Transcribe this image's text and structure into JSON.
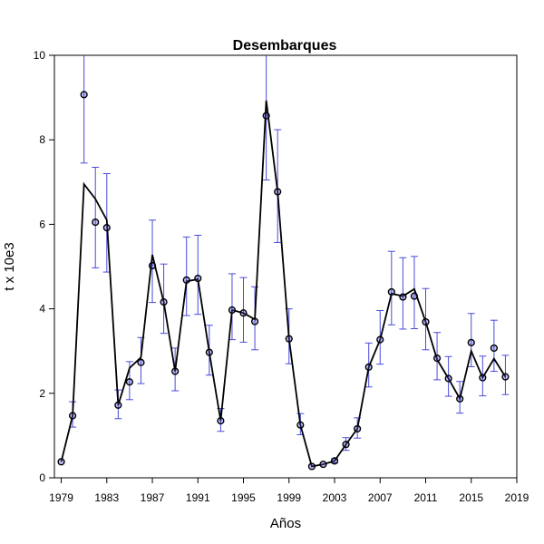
{
  "chart_data": {
    "type": "line",
    "title": "Desembarques",
    "xlabel": "Años",
    "ylabel": "t x 10e3",
    "xlim": [
      1978.4,
      2019
    ],
    "ylim": [
      0,
      10
    ],
    "x_ticks": [
      1979,
      1983,
      1987,
      1991,
      1995,
      1999,
      2003,
      2007,
      2011,
      2015,
      2019
    ],
    "y_ticks": [
      0,
      2,
      4,
      6,
      8,
      10
    ],
    "grid": false,
    "colors": {
      "error_bars": "#4a4adc",
      "line": "#000000",
      "points": "#000000"
    },
    "series": [
      {
        "kind": "observed-with-error",
        "x": [
          1979,
          1980,
          1981,
          1982,
          1983,
          1984,
          1985,
          1986,
          1987,
          1988,
          1989,
          1990,
          1991,
          1992,
          1993,
          1994,
          1995,
          1996,
          1997,
          1998,
          1999,
          2000,
          2001,
          2002,
          2003,
          2004,
          2005,
          2006,
          2007,
          2008,
          2009,
          2010,
          2011,
          2012,
          2013,
          2014,
          2015,
          2016,
          2017,
          2018
        ],
        "values": [
          0.38,
          1.47,
          9.07,
          6.05,
          5.92,
          1.72,
          2.27,
          2.73,
          5.02,
          4.16,
          2.52,
          4.68,
          4.72,
          2.97,
          1.35,
          3.97,
          3.9,
          3.7,
          8.57,
          6.77,
          3.29,
          1.25,
          0.27,
          0.32,
          0.4,
          0.79,
          1.16,
          2.62,
          3.27,
          4.4,
          4.28,
          4.3,
          3.69,
          2.83,
          2.35,
          1.87,
          3.2,
          2.37,
          3.07,
          2.39
        ],
        "lower": [
          0.38,
          1.2,
          7.45,
          4.97,
          4.87,
          1.4,
          1.85,
          2.23,
          4.15,
          3.42,
          2.06,
          3.84,
          3.87,
          2.43,
          1.1,
          3.27,
          3.21,
          3.03,
          7.05,
          5.57,
          2.7,
          1.02,
          0.27,
          0.32,
          0.35,
          0.65,
          0.94,
          2.15,
          2.69,
          3.62,
          3.52,
          3.53,
          3.03,
          2.32,
          1.93,
          1.53,
          2.63,
          1.94,
          2.52,
          1.97
        ],
        "upper": [
          0.38,
          1.8,
          10.0,
          7.35,
          7.2,
          2.08,
          2.75,
          3.32,
          6.1,
          5.06,
          3.07,
          5.7,
          5.74,
          3.61,
          1.64,
          4.83,
          4.74,
          4.52,
          10.0,
          8.24,
          4.0,
          1.52,
          0.27,
          0.32,
          0.45,
          0.95,
          1.42,
          3.19,
          3.96,
          5.36,
          5.21,
          5.24,
          4.48,
          3.44,
          2.87,
          2.28,
          3.89,
          2.88,
          3.73,
          2.9
        ]
      },
      {
        "kind": "fitted",
        "x": [
          1979,
          1980,
          1981,
          1982,
          1983,
          1984,
          1985,
          1986,
          1987,
          1988,
          1989,
          1990,
          1991,
          1992,
          1993,
          1994,
          1995,
          1996,
          1997,
          1998,
          1999,
          2000,
          2001,
          2002,
          2003,
          2004,
          2005,
          2006,
          2007,
          2008,
          2009,
          2010,
          2011,
          2012,
          2013,
          2014,
          2015,
          2016,
          2017,
          2018
        ],
        "values": [
          0.38,
          1.47,
          6.95,
          6.6,
          6.1,
          1.72,
          2.6,
          2.85,
          5.28,
          4.16,
          2.52,
          4.65,
          4.7,
          2.97,
          1.35,
          3.97,
          3.9,
          3.75,
          8.93,
          6.77,
          3.29,
          1.25,
          0.27,
          0.32,
          0.4,
          0.79,
          1.16,
          2.62,
          3.27,
          4.36,
          4.3,
          4.47,
          3.69,
          2.8,
          2.35,
          1.87,
          3.0,
          2.37,
          2.82,
          2.39
        ]
      }
    ]
  }
}
